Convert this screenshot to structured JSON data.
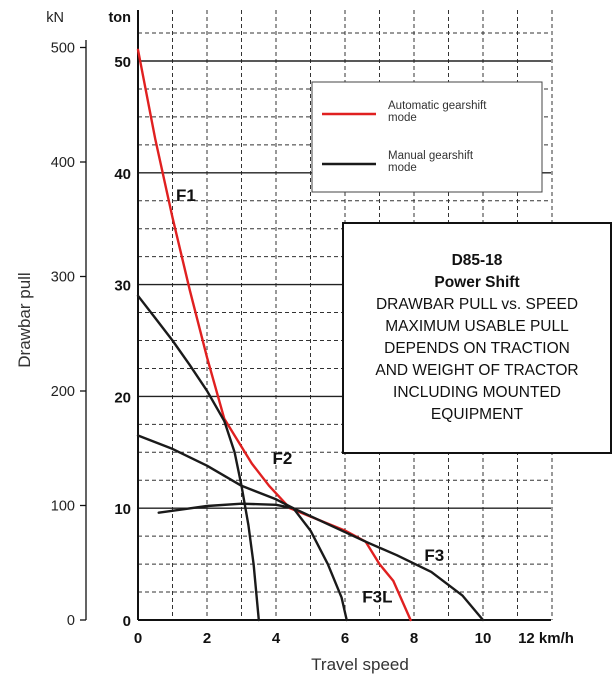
{
  "chart_data": {
    "type": "line",
    "xlabel": "Travel speed",
    "ylabel": "Drawbar pull",
    "x_unit": "km/h",
    "x_ticks": [
      "0",
      "2",
      "4",
      "6",
      "8",
      "10",
      "12 km/h"
    ],
    "xlim": [
      0,
      12
    ],
    "ylim_ton": [
      0,
      55
    ],
    "y_left_unit": "kN",
    "y_left_ticks": [
      "0",
      "100",
      "200",
      "300",
      "400",
      "500"
    ],
    "y_right_unit": "ton",
    "y_ton_ticks": [
      "0",
      "10",
      "20",
      "30",
      "40",
      "50"
    ],
    "grid": true,
    "legend": {
      "position": "top-right",
      "entries": [
        {
          "label": "Automatic gearshift mode",
          "color": "#e02020"
        },
        {
          "label": "Manual gearshift mode",
          "color": "#1a1a1a"
        }
      ]
    },
    "series": [
      {
        "name": "Automatic gearshift mode",
        "gear": "F1",
        "color": "#e02020",
        "points": [
          [
            0,
            51
          ],
          [
            0.5,
            43
          ],
          [
            1,
            36
          ],
          [
            1.5,
            29.5
          ],
          [
            2,
            23.5
          ],
          [
            2.5,
            18
          ],
          [
            3.3,
            14
          ],
          [
            3.8,
            12
          ],
          [
            4.4,
            10
          ],
          [
            5.2,
            9
          ],
          [
            6,
            8
          ],
          [
            6.6,
            7
          ],
          [
            7,
            5
          ],
          [
            7.4,
            3.5
          ],
          [
            7.9,
            0
          ]
        ]
      },
      {
        "name": "Manual gearshift mode",
        "gear": "F1",
        "color": "#1a1a1a",
        "points": [
          [
            0,
            29
          ],
          [
            0.5,
            27
          ],
          [
            1,
            25
          ],
          [
            1.5,
            22.8
          ],
          [
            2,
            20.5
          ],
          [
            2.5,
            17.8
          ],
          [
            2.8,
            15
          ],
          [
            3,
            12
          ],
          [
            3.2,
            8.5
          ],
          [
            3.35,
            5
          ],
          [
            3.5,
            0
          ]
        ]
      },
      {
        "name": "Manual gearshift mode",
        "gear": "F2",
        "color": "#1a1a1a",
        "points": [
          [
            0,
            16.5
          ],
          [
            1,
            15.3
          ],
          [
            2,
            13.8
          ],
          [
            3,
            12
          ],
          [
            4,
            10.8
          ],
          [
            4.5,
            10
          ],
          [
            5,
            8
          ],
          [
            5.5,
            5
          ],
          [
            5.9,
            2
          ],
          [
            6.05,
            0
          ]
        ]
      },
      {
        "name": "Manual gearshift mode",
        "gear": "F3",
        "color": "#1a1a1a",
        "points": [
          [
            0.6,
            9.6
          ],
          [
            2,
            10.2
          ],
          [
            3,
            10.4
          ],
          [
            4,
            10.3
          ],
          [
            4.5,
            10
          ],
          [
            6.6,
            7
          ],
          [
            7.5,
            5.8
          ],
          [
            8.5,
            4.3
          ],
          [
            9.4,
            2.2
          ],
          [
            10,
            0
          ]
        ]
      }
    ],
    "annotations": [
      {
        "text": "F1",
        "x": 1.1,
        "y": 38
      },
      {
        "text": "F2",
        "x": 3.9,
        "y": 14.5
      },
      {
        "text": "F3",
        "x": 8.3,
        "y": 5.8
      },
      {
        "text": "F3L",
        "x": 6.5,
        "y": 2.1
      }
    ]
  },
  "info_box": {
    "line1": "D85-18",
    "line2": "Power Shift",
    "line3": "DRAWBAR PULL vs. SPEED",
    "line4": "MAXIMUM USABLE PULL",
    "line5": "DEPENDS ON TRACTION",
    "line6": "AND WEIGHT OF TRACTOR",
    "line7": "INCLUDING MOUNTED",
    "line8": "EQUIPMENT"
  }
}
